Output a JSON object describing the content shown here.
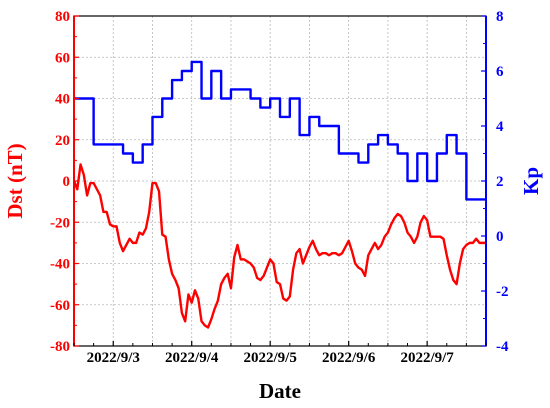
{
  "chart_data": {
    "type": "line",
    "title": "",
    "xlabel": "Date",
    "x_tick_labels": [
      "2022/9/3",
      "2022/9/4",
      "2022/9/5",
      "2022/9/6",
      "2022/9/7"
    ],
    "xlim": [
      "2022-09-02 12:00",
      "2022-09-07 18:00"
    ],
    "grid": true,
    "left_axis": {
      "label": "Dst (nT)",
      "color": "#ff0000",
      "ylim": [
        -80,
        80
      ],
      "ticks": [
        "80",
        "60",
        "40",
        "20",
        "0",
        "-20",
        "-40",
        "-60",
        "-80"
      ]
    },
    "right_axis": {
      "label": "Kp",
      "color": "#0000ff",
      "ylim": [
        -4,
        8
      ],
      "ticks": [
        "8",
        "6",
        "4",
        "2",
        "0",
        "-2",
        "-4"
      ]
    },
    "series": [
      {
        "axis": "left",
        "color": "#ff0000",
        "style": "line",
        "x_hours": [
          0,
          1,
          2,
          3,
          4,
          5,
          6,
          7,
          8,
          9,
          10,
          11,
          12,
          13,
          14,
          15,
          16,
          17,
          18,
          19,
          20,
          21,
          22,
          23,
          24,
          25,
          26,
          27,
          28,
          29,
          30,
          31,
          32,
          33,
          34,
          35,
          36,
          37,
          38,
          39,
          40,
          41,
          42,
          43,
          44,
          45,
          46,
          47,
          48,
          49,
          50,
          51,
          52,
          53,
          54,
          55,
          56,
          57,
          58,
          59,
          60,
          61,
          62,
          63,
          64,
          65,
          66,
          67,
          68,
          69,
          70,
          71,
          72,
          73,
          74,
          75,
          76,
          77,
          78,
          79,
          80,
          81,
          82,
          83,
          84,
          85,
          86,
          87,
          88,
          89,
          90,
          91,
          92,
          93,
          94,
          95,
          96,
          97,
          98,
          99,
          100,
          101,
          102,
          103,
          104,
          105,
          106,
          107,
          108,
          109,
          110,
          111,
          112,
          113,
          114,
          115,
          116,
          117,
          118,
          119,
          120,
          121,
          122,
          123,
          124,
          125,
          126
        ],
        "values": [
          0,
          -4,
          8,
          3,
          -7,
          -1,
          -1,
          -4,
          -7,
          -15,
          -15,
          -21,
          -22,
          -22,
          -30,
          -34,
          -31,
          -28,
          -30,
          -30,
          -25,
          -26,
          -23,
          -15,
          -1,
          -1,
          -5,
          -26,
          -27,
          -38,
          -45,
          -48,
          -52,
          -64,
          -68,
          -55,
          -59,
          -53,
          -57,
          -68,
          -70,
          -71,
          -67,
          -62,
          -58,
          -50,
          -47,
          -45,
          -52,
          -37,
          -31,
          -38,
          -38,
          -39,
          -40,
          -42,
          -47,
          -48,
          -46,
          -42,
          -38,
          -40,
          -49,
          -50,
          -57,
          -58,
          -56,
          -43,
          -35,
          -33,
          -40,
          -36,
          -32,
          -29,
          -33,
          -36,
          -35,
          -35,
          -36,
          -35,
          -35,
          -36,
          -35,
          -32,
          -29,
          -34,
          -40,
          -42,
          -43,
          -46,
          -36,
          -33,
          -30,
          -33,
          -31,
          -27,
          -25,
          -21,
          -18,
          -16,
          -17,
          -20,
          -25,
          -27,
          -30,
          -27,
          -20,
          -17,
          -19,
          -27,
          -27,
          -27,
          -27,
          -28,
          -36,
          -43,
          -48,
          -50,
          -40,
          -33,
          -31,
          -30,
          -30,
          -28,
          -30,
          -30,
          -30
        ]
      },
      {
        "axis": "right",
        "color": "#0000ff",
        "style": "step",
        "x_hours": [
          0,
          3,
          6,
          9,
          12,
          15,
          18,
          21,
          24,
          27,
          30,
          33,
          36,
          39,
          42,
          45,
          48,
          51,
          54,
          57,
          60,
          63,
          66,
          69,
          72,
          75,
          78,
          81,
          84,
          87,
          90,
          93,
          96,
          99,
          102,
          105,
          108,
          111,
          114,
          117,
          120,
          123,
          126
        ],
        "values": [
          5,
          5,
          3.33,
          3.33,
          3.33,
          3,
          2.67,
          3.33,
          4.33,
          5,
          5.67,
          6,
          6.33,
          5,
          6,
          5,
          5.33,
          5.33,
          5,
          4.67,
          5,
          4.33,
          5,
          3.67,
          4.33,
          4,
          4,
          3,
          3,
          2.67,
          3.33,
          3.67,
          3.33,
          3,
          2,
          3,
          2,
          3,
          3.67,
          3,
          1.33,
          1.33,
          1.33
        ]
      }
    ]
  }
}
